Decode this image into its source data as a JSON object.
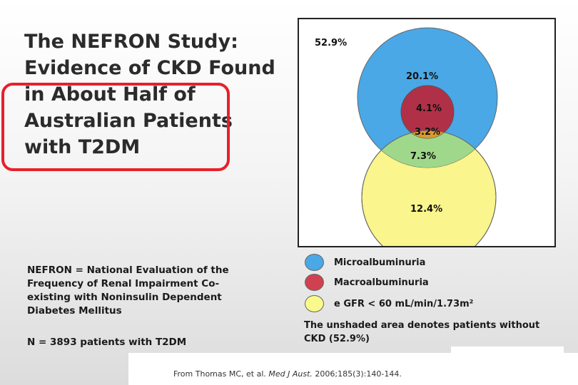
{
  "slide": {
    "title_lines": [
      "The NEFRON Study:",
      "Evidence of CKD Found",
      "in About Half of",
      "Australian Patients",
      "with T2DM"
    ],
    "definition": "NEFRON = National Evaluation of the Frequency of Renal Impairment Co-existing with Noninsulin Dependent Diabetes Mellitus",
    "patients": "N = 3893 patients with T2DM",
    "citation_prefix": "From Thomas MC, et al. ",
    "citation_journal": "Med J Aust.",
    "citation_suffix": " 2006;185(3):140-144.",
    "highlight_color": "#e8202a"
  },
  "venn": {
    "outside_label": "52.9%",
    "regions": {
      "micro_only": "20.1%",
      "macro_only": "4.1%",
      "macro_egfr": "3.2%",
      "micro_egfr": "7.3%",
      "egfr_only": "12.4%"
    },
    "colors": {
      "microalbuminuria": "#4aa8e6",
      "macroalbuminuria": "#b03048",
      "egfr": "#faf58c",
      "micro_egfr_overlap": "#9fd88a",
      "macro_egfr_overlap": "#d99a2e"
    }
  },
  "legend": [
    {
      "label": "Microalbuminuria",
      "color": "#4aa8e6",
      "icon": "blue-circle-icon"
    },
    {
      "label": "Macroalbuminuria",
      "color": "#d04050",
      "icon": "red-circle-icon"
    },
    {
      "label": "e GFR < 60 mL/min/1.73m²",
      "color": "#fafa8c",
      "icon": "yellow-circle-icon"
    }
  ],
  "note": "The unshaded area denotes patients without CKD (52.9%)"
}
